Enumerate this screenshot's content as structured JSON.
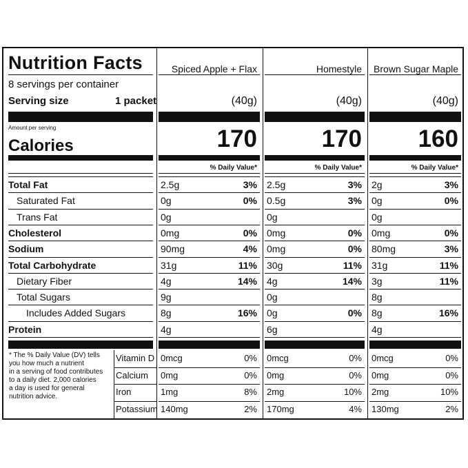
{
  "label": {
    "title": "Nutrition Facts",
    "servings": "8 servings per container",
    "serving_size_label": "Serving size",
    "serving_size_value": "1 packet",
    "amount_per_serving": "Amount per serving",
    "calories_label": "Calories",
    "dv_header": "% Daily Value*",
    "footnote": [
      "* The % Daily Value (DV) tells",
      "you how much a nutrient",
      "in a serving of food contributes",
      "to a daily diet. 2,000 calories",
      "a day is used for general",
      "nutrition advice."
    ]
  },
  "nutrients": [
    {
      "label": "Total Fat",
      "bold": true
    },
    {
      "label": "Saturated Fat",
      "bold": false
    },
    {
      "label": "Trans Fat",
      "bold": false
    },
    {
      "label": "Cholesterol",
      "bold": true
    },
    {
      "label": "Sodium",
      "bold": true
    },
    {
      "label": "Total Carbohydrate",
      "bold": true
    },
    {
      "label": "Dietary Fiber",
      "bold": false
    },
    {
      "label": "Total Sugars",
      "bold": false
    },
    {
      "label": "Includes Added Sugars",
      "bold": false
    },
    {
      "label": "Protein",
      "bold": true
    }
  ],
  "vitamins": [
    "Vitamin D",
    "Calcium",
    "Iron",
    "Potassium"
  ],
  "products": [
    {
      "name": "Spiced Apple + Flax",
      "serving": "(40g)",
      "calories": "170",
      "values": [
        [
          "2.5g",
          "3%"
        ],
        [
          "0g",
          "0%"
        ],
        [
          "0g",
          ""
        ],
        [
          "0mg",
          "0%"
        ],
        [
          "90mg",
          "4%"
        ],
        [
          "31g",
          "11%"
        ],
        [
          "4g",
          "14%"
        ],
        [
          "9g",
          ""
        ],
        [
          "8g",
          "16%"
        ],
        [
          "4g",
          ""
        ]
      ],
      "vitamins": [
        [
          "0mcg",
          "0%"
        ],
        [
          "0mg",
          "0%"
        ],
        [
          "1mg",
          "8%"
        ],
        [
          "140mg",
          "2%"
        ]
      ]
    },
    {
      "name": "Homestyle",
      "serving": "(40g)",
      "calories": "170",
      "values": [
        [
          "2.5g",
          "3%"
        ],
        [
          "0.5g",
          "3%"
        ],
        [
          "0g",
          ""
        ],
        [
          "0mg",
          "0%"
        ],
        [
          "0mg",
          "0%"
        ],
        [
          "30g",
          "11%"
        ],
        [
          "4g",
          "14%"
        ],
        [
          "0g",
          ""
        ],
        [
          "0g",
          "0%"
        ],
        [
          "6g",
          ""
        ]
      ],
      "vitamins": [
        [
          "0mcg",
          "0%"
        ],
        [
          "0mg",
          "0%"
        ],
        [
          "2mg",
          "10%"
        ],
        [
          "170mg",
          "4%"
        ]
      ]
    },
    {
      "name": "Brown Sugar Maple",
      "serving": "(40g)",
      "calories": "160",
      "values": [
        [
          "2g",
          "3%"
        ],
        [
          "0g",
          "0%"
        ],
        [
          "0g",
          ""
        ],
        [
          "0mg",
          "0%"
        ],
        [
          "80mg",
          "3%"
        ],
        [
          "31g",
          "11%"
        ],
        [
          "3g",
          "11%"
        ],
        [
          "8g",
          ""
        ],
        [
          "8g",
          "16%"
        ],
        [
          "4g",
          ""
        ]
      ],
      "vitamins": [
        [
          "0mcg",
          "0%"
        ],
        [
          "0mg",
          "0%"
        ],
        [
          "2mg",
          "10%"
        ],
        [
          "130mg",
          "2%"
        ]
      ]
    }
  ]
}
